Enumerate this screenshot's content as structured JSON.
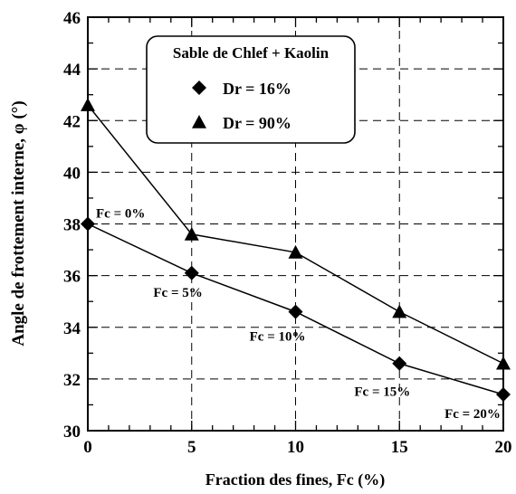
{
  "chart_data": {
    "type": "line",
    "title": "",
    "xlabel": "Fraction des fines, Fc (%)",
    "ylabel": "Angle de frottement interne, φ (°)",
    "xlim": [
      0,
      20
    ],
    "ylim": [
      30,
      46
    ],
    "x_ticks": [
      0,
      5,
      10,
      15,
      20
    ],
    "y_ticks": [
      30,
      32,
      34,
      36,
      38,
      40,
      42,
      44,
      46
    ],
    "grid": true,
    "legend": {
      "position": "top-center",
      "title": "Sable de Chlef + Kaolin"
    },
    "x": [
      0,
      5,
      10,
      15,
      20
    ],
    "series": [
      {
        "name": "Dr = 16%",
        "marker": "diamond",
        "values": [
          38.0,
          36.1,
          34.6,
          32.6,
          31.4
        ]
      },
      {
        "name": "Dr = 90%",
        "marker": "triangle",
        "values": [
          42.6,
          37.6,
          36.9,
          34.6,
          32.6
        ]
      }
    ],
    "annotations": [
      {
        "text": "Fc = 0%",
        "x": 0,
        "y": 38.0
      },
      {
        "text": "Fc = 5%",
        "x": 5,
        "y": 36.1
      },
      {
        "text": "Fc = 10%",
        "x": 10,
        "y": 34.6
      },
      {
        "text": "Fc = 15%",
        "x": 15,
        "y": 32.6
      },
      {
        "text": "Fc = 20%",
        "x": 20,
        "y": 31.4
      }
    ]
  }
}
